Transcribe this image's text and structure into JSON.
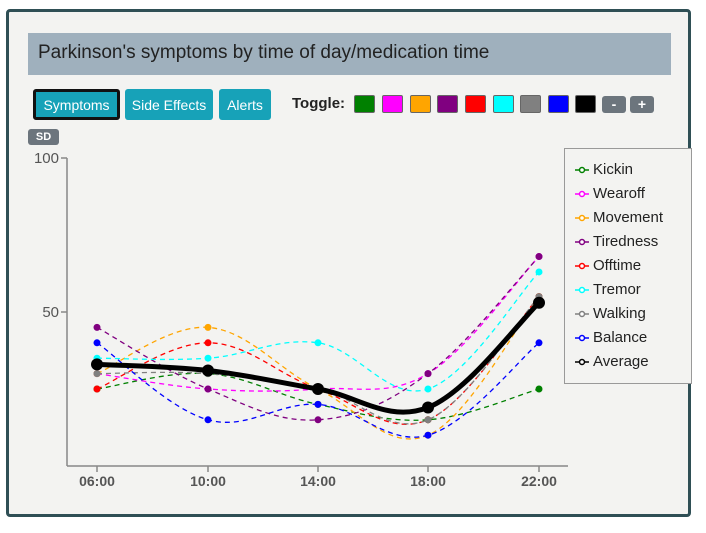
{
  "title": "Parkinson's symptoms by time of day/medication time",
  "tabs": [
    {
      "label": "Symptoms",
      "active": true
    },
    {
      "label": "Side Effects",
      "active": false
    },
    {
      "label": "Alerts",
      "active": false
    }
  ],
  "toggle": {
    "label": "Toggle:",
    "colors": [
      "#008000",
      "#ff00ff",
      "#ffa500",
      "#800080",
      "#ff0000",
      "#00ffff",
      "#808080",
      "#0000ff",
      "#000000"
    ],
    "minus_label": "-",
    "plus_label": "+"
  },
  "sd_label": "SD",
  "chart_data": {
    "type": "line",
    "x": [
      "06:00",
      "10:00",
      "14:00",
      "18:00",
      "22:00"
    ],
    "ylim": [
      0,
      100
    ],
    "yticks": [
      "100",
      "50"
    ],
    "grid": false,
    "legend_position": "right",
    "series": [
      {
        "name": "Kickin",
        "color": "#008000",
        "style": "dashed",
        "values": [
          25,
          30,
          20,
          15,
          25
        ]
      },
      {
        "name": "Wearoff",
        "color": "#ff00ff",
        "style": "dashed",
        "values": [
          30,
          25,
          25,
          30,
          68
        ]
      },
      {
        "name": "Movement",
        "color": "#ffa500",
        "style": "dashed",
        "values": [
          30,
          45,
          25,
          10,
          55
        ]
      },
      {
        "name": "Tiredness",
        "color": "#800080",
        "style": "dashed",
        "values": [
          45,
          25,
          15,
          30,
          68
        ]
      },
      {
        "name": "Offtime",
        "color": "#ff0000",
        "style": "dashed",
        "values": [
          25,
          40,
          25,
          15,
          55
        ]
      },
      {
        "name": "Tremor",
        "color": "#00ffff",
        "style": "dashed",
        "values": [
          35,
          35,
          40,
          25,
          63
        ]
      },
      {
        "name": "Walking",
        "color": "#808080",
        "style": "dashed",
        "values": [
          30,
          30,
          25,
          15,
          55
        ]
      },
      {
        "name": "Balance",
        "color": "#0000ff",
        "style": "dashed",
        "values": [
          40,
          15,
          20,
          10,
          40
        ]
      },
      {
        "name": "Average",
        "color": "#000000",
        "style": "solid-bold",
        "values": [
          33,
          31,
          25,
          19,
          53
        ]
      }
    ]
  }
}
